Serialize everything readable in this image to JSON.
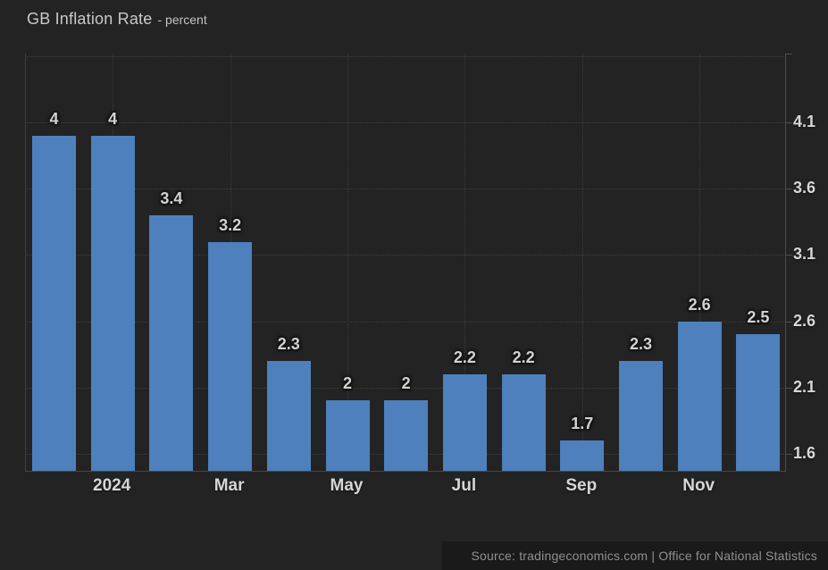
{
  "header": {
    "title": "GB Inflation Rate",
    "subtitle": "- percent"
  },
  "footer": {
    "source": "Source: tradingeconomics.com | Office for National Statistics"
  },
  "colors": {
    "background": "#232323",
    "bar": "#4d80bc",
    "grid": "#3f3f3f",
    "axis": "#4d4d4d",
    "label_text": "#d2d2d2",
    "footer_bg": "#1a1a1a"
  },
  "chart_data": {
    "type": "bar",
    "title": "GB Inflation Rate",
    "ylabel_unit": "percent",
    "values": [
      4,
      4,
      3.4,
      3.2,
      2.3,
      2,
      2,
      2.2,
      2.2,
      1.7,
      2.3,
      2.6,
      2.5
    ],
    "bar_labels": [
      "4",
      "4",
      "3.4",
      "3.2",
      "2.3",
      "2",
      "2",
      "2.2",
      "2.2",
      "1.7",
      "2.3",
      "2.6",
      "2.5"
    ],
    "x_ticks": [
      {
        "label": "2024",
        "bar_index": 1
      },
      {
        "label": "Mar",
        "bar_index": 3
      },
      {
        "label": "May",
        "bar_index": 5
      },
      {
        "label": "Jul",
        "bar_index": 7
      },
      {
        "label": "Sep",
        "bar_index": 9
      },
      {
        "label": "Nov",
        "bar_index": 11
      }
    ],
    "y_ticks": [
      {
        "label": "4.1",
        "value": 4.1
      },
      {
        "label": "3.6",
        "value": 3.6
      },
      {
        "label": "3.1",
        "value": 3.1
      },
      {
        "label": "2.6",
        "value": 2.6
      },
      {
        "label": "2.1",
        "value": 2.1
      },
      {
        "label": "1.6",
        "value": 1.6
      }
    ],
    "y_gridline_values": [
      4.6,
      4.1,
      3.6,
      3.1,
      2.6,
      2.1,
      1.6
    ],
    "ylim": [
      1.47,
      4.62
    ],
    "y_axis_side": "right",
    "grid": "dotted",
    "legend": "none"
  }
}
